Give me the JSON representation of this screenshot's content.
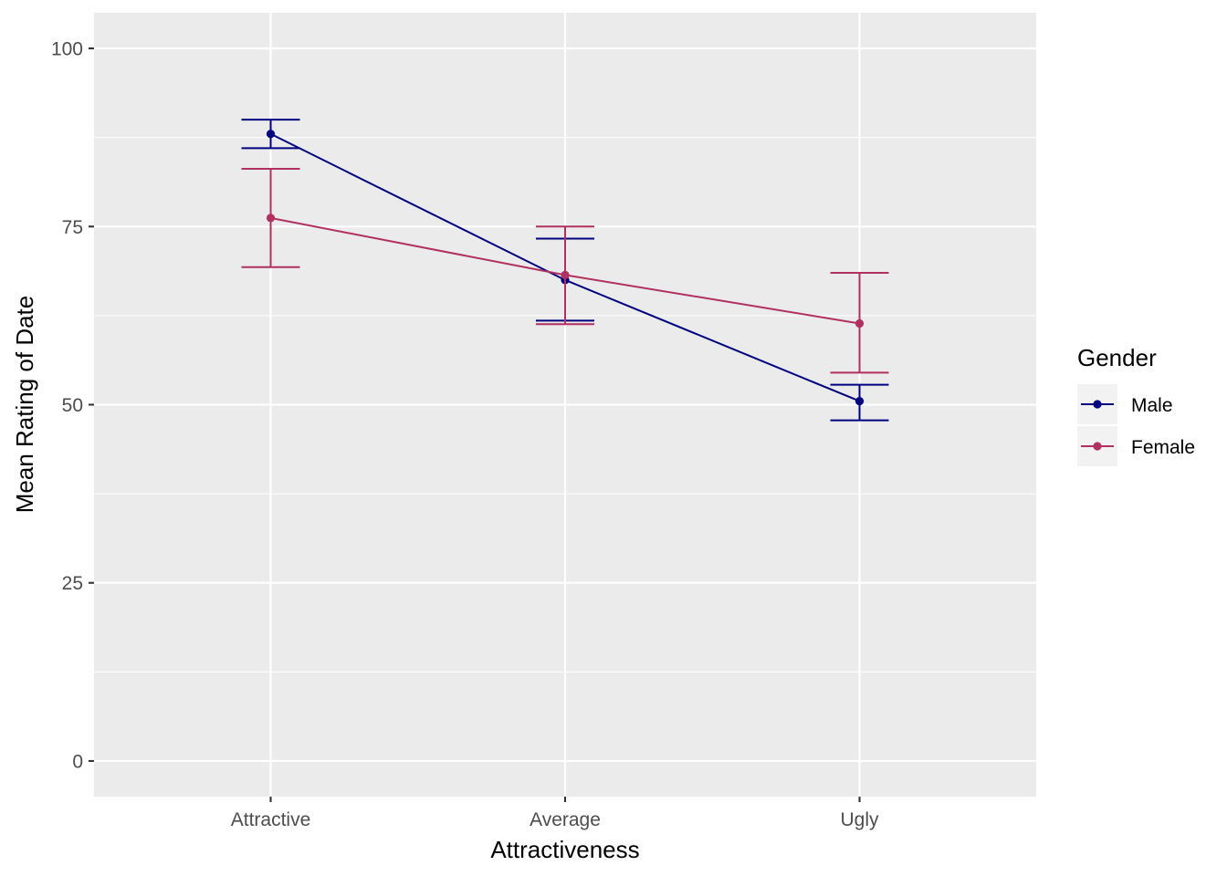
{
  "chart_data": {
    "type": "line",
    "categories": [
      "Attractive",
      "Average",
      "Ugly"
    ],
    "xlabel": "Attractiveness",
    "ylabel": "Mean Rating of Date",
    "ylim": [
      -5,
      105
    ],
    "yticks": [
      0,
      25,
      50,
      75,
      100
    ],
    "grid": true,
    "legend_position": "right",
    "legend_title": "Gender",
    "background": "#ebebeb",
    "grid_color": "#ffffff",
    "series": [
      {
        "name": "Male",
        "color": "#000080",
        "values": [
          88.0,
          67.5,
          50.5
        ],
        "error_low": [
          86.0,
          61.8,
          47.8
        ],
        "error_high": [
          90.0,
          73.3,
          52.8
        ]
      },
      {
        "name": "Female",
        "color": "#B03060",
        "values": [
          76.2,
          68.2,
          61.4
        ],
        "error_low": [
          69.3,
          61.3,
          54.5
        ],
        "error_high": [
          83.1,
          75.0,
          68.5
        ]
      }
    ]
  }
}
